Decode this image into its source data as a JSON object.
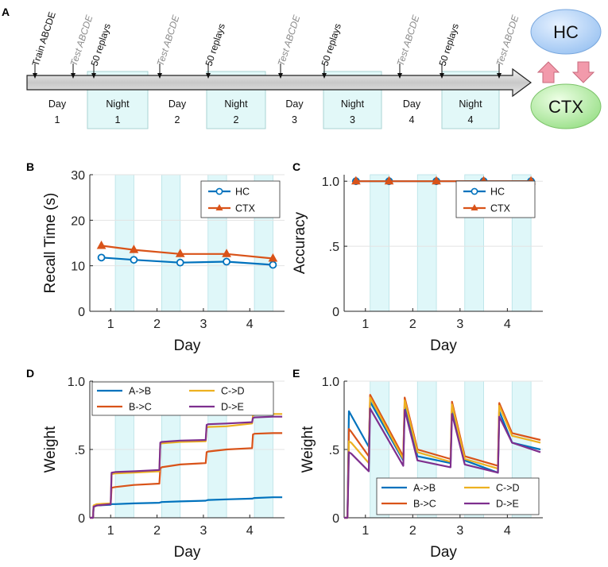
{
  "panelA": {
    "letter": "A",
    "periods": [
      {
        "name": "Day",
        "num": "1",
        "night": false
      },
      {
        "name": "Night",
        "num": "1",
        "night": true
      },
      {
        "name": "Day",
        "num": "2",
        "night": false
      },
      {
        "name": "Night",
        "num": "2",
        "night": true
      },
      {
        "name": "Day",
        "num": "3",
        "night": false
      },
      {
        "name": "Night",
        "num": "3",
        "night": true
      },
      {
        "name": "Day",
        "num": "4",
        "night": false
      },
      {
        "name": "Night",
        "num": "4",
        "night": true
      }
    ],
    "events": [
      {
        "text": "Train ABCDE",
        "style": "train"
      },
      {
        "text": "Test ABCDE",
        "style": "test"
      },
      {
        "text": "50 replays",
        "style": "replay"
      },
      {
        "text": "Test ABCDE",
        "style": "test"
      },
      {
        "text": "50 replays",
        "style": "replay"
      },
      {
        "text": "Test ABCDE",
        "style": "test"
      },
      {
        "text": "50 replays",
        "style": "replay"
      },
      {
        "text": "Test ABCDE",
        "style": "test"
      },
      {
        "text": "50 replays",
        "style": "replay"
      },
      {
        "text": "Test ABCDE",
        "style": "test"
      }
    ],
    "hc_label": "HC",
    "ctx_label": "CTX"
  },
  "chart_data": [
    {
      "panel": "B",
      "type": "line",
      "xlabel": "Day",
      "ylabel": "Recall Time (s)",
      "xlim": [
        0.55,
        4.75
      ],
      "ylim": [
        0,
        30
      ],
      "yticks": [
        0,
        10,
        20,
        30
      ],
      "ytick_labels": [
        "0",
        "10",
        "20",
        "30"
      ],
      "xticks": [
        1,
        2,
        3,
        4
      ],
      "xtick_labels": [
        "1",
        "2",
        "3",
        "4"
      ],
      "night_bands": [
        [
          1.1,
          1.5
        ],
        [
          2.1,
          2.5
        ],
        [
          3.1,
          3.5
        ],
        [
          4.1,
          4.5
        ]
      ],
      "legend_position": "top-right",
      "series": [
        {
          "name": "HC",
          "color": "#0072BD",
          "marker": "circle",
          "x": [
            0.8,
            1.5,
            2.5,
            3.5,
            4.5
          ],
          "y": [
            11.8,
            11.3,
            10.7,
            10.9,
            10.2
          ]
        },
        {
          "name": "CTX",
          "color": "#D95319",
          "marker": "triangle",
          "x": [
            0.8,
            1.5,
            2.5,
            3.5,
            4.5
          ],
          "y": [
            14.4,
            13.5,
            12.6,
            12.6,
            11.6
          ]
        }
      ]
    },
    {
      "panel": "C",
      "type": "line",
      "xlabel": "Day",
      "ylabel": "Accuracy",
      "xlim": [
        0.55,
        4.75
      ],
      "ylim": [
        0,
        1.05
      ],
      "yticks": [
        0,
        0.5,
        1
      ],
      "ytick_labels": [
        "0",
        ".5",
        "1.0"
      ],
      "xticks": [
        1,
        2,
        3,
        4
      ],
      "xtick_labels": [
        "1",
        "2",
        "3",
        "4"
      ],
      "night_bands": [
        [
          1.1,
          1.5
        ],
        [
          2.1,
          2.5
        ],
        [
          3.1,
          3.5
        ],
        [
          4.1,
          4.5
        ]
      ],
      "legend_position": "top-right",
      "series": [
        {
          "name": "HC",
          "color": "#0072BD",
          "marker": "circle",
          "x": [
            0.8,
            1.5,
            2.5,
            3.5,
            4.5
          ],
          "y": [
            1,
            1,
            1,
            1,
            1
          ]
        },
        {
          "name": "CTX",
          "color": "#D95319",
          "marker": "triangle",
          "x": [
            0.8,
            1.5,
            2.5,
            3.5,
            4.5
          ],
          "y": [
            1,
            1,
            1,
            1,
            1
          ]
        }
      ]
    },
    {
      "panel": "D",
      "type": "line",
      "xlabel": "Day",
      "ylabel": "Weight",
      "xlim": [
        0.55,
        4.75
      ],
      "ylim": [
        0,
        1
      ],
      "yticks": [
        0,
        0.5,
        1
      ],
      "ytick_labels": [
        "0",
        ".5",
        "1.0"
      ],
      "xticks": [
        1,
        2,
        3,
        4
      ],
      "xtick_labels": [
        "1",
        "2",
        "3",
        "4"
      ],
      "night_bands": [
        [
          1.1,
          1.5
        ],
        [
          2.1,
          2.5
        ],
        [
          3.1,
          3.5
        ],
        [
          4.1,
          4.5
        ]
      ],
      "legend_position": "top",
      "series": [
        {
          "name": "A->B",
          "color": "#0072BD",
          "x": [
            0.55,
            0.62,
            0.63,
            0.7,
            1.0,
            1.02,
            1.1,
            1.5,
            2.05,
            2.1,
            2.5,
            3.05,
            3.1,
            3.5,
            4.05,
            4.1,
            4.5,
            4.7
          ],
          "y": [
            0,
            0,
            0.08,
            0.09,
            0.095,
            0.1,
            0.1,
            0.105,
            0.11,
            0.115,
            0.12,
            0.125,
            0.13,
            0.135,
            0.14,
            0.145,
            0.15,
            0.15
          ]
        },
        {
          "name": "B->C",
          "color": "#D95319",
          "x": [
            0.55,
            0.62,
            0.63,
            0.7,
            1.0,
            1.02,
            1.1,
            1.5,
            2.05,
            2.07,
            2.1,
            2.5,
            3.05,
            3.07,
            3.1,
            3.5,
            4.05,
            4.07,
            4.1,
            4.5,
            4.7
          ],
          "y": [
            0,
            0,
            0.08,
            0.09,
            0.1,
            0.22,
            0.225,
            0.24,
            0.25,
            0.36,
            0.37,
            0.39,
            0.4,
            0.48,
            0.485,
            0.5,
            0.51,
            0.61,
            0.615,
            0.62,
            0.62
          ]
        },
        {
          "name": "C->D",
          "color": "#EDB120",
          "x": [
            0.55,
            0.62,
            0.63,
            0.7,
            1.0,
            1.02,
            1.1,
            1.5,
            2.05,
            2.07,
            2.1,
            2.5,
            3.05,
            3.07,
            3.1,
            3.5,
            4.05,
            4.07,
            4.1,
            4.5,
            4.7
          ],
          "y": [
            0,
            0,
            0.09,
            0.1,
            0.105,
            0.32,
            0.325,
            0.33,
            0.34,
            0.54,
            0.545,
            0.555,
            0.56,
            0.66,
            0.665,
            0.67,
            0.69,
            0.75,
            0.755,
            0.76,
            0.76
          ]
        },
        {
          "name": "D->E",
          "color": "#7E2F8E",
          "x": [
            0.55,
            0.62,
            0.63,
            0.7,
            1.0,
            1.02,
            1.1,
            1.5,
            2.05,
            2.07,
            2.1,
            2.5,
            3.05,
            3.07,
            3.1,
            3.5,
            4.05,
            4.07,
            4.1,
            4.5,
            4.7
          ],
          "y": [
            0,
            0,
            0.08,
            0.09,
            0.1,
            0.33,
            0.335,
            0.34,
            0.35,
            0.55,
            0.555,
            0.565,
            0.57,
            0.68,
            0.685,
            0.69,
            0.7,
            0.73,
            0.735,
            0.74,
            0.74
          ]
        }
      ]
    },
    {
      "panel": "E",
      "type": "line",
      "xlabel": "Day",
      "ylabel": "Weight",
      "xlim": [
        0.55,
        4.75
      ],
      "ylim": [
        0,
        1
      ],
      "yticks": [
        0,
        0.5,
        1
      ],
      "ytick_labels": [
        "0",
        ".5",
        "1.0"
      ],
      "xticks": [
        1,
        2,
        3,
        4
      ],
      "xtick_labels": [
        "1",
        "2",
        "3",
        "4"
      ],
      "night_bands": [
        [
          1.1,
          1.5
        ],
        [
          2.1,
          2.5
        ],
        [
          3.1,
          3.5
        ],
        [
          4.1,
          4.5
        ]
      ],
      "legend_position": "bottom",
      "series": [
        {
          "name": "A->B",
          "color": "#0072BD",
          "x": [
            0.55,
            0.62,
            0.65,
            0.7,
            1.07,
            1.1,
            1.8,
            1.83,
            2.1,
            2.8,
            2.83,
            3.1,
            3.8,
            3.83,
            4.1,
            4.7
          ],
          "y": [
            0,
            0,
            0.78,
            0.75,
            0.52,
            0.85,
            0.42,
            0.82,
            0.45,
            0.4,
            0.8,
            0.42,
            0.33,
            0.78,
            0.55,
            0.5
          ]
        },
        {
          "name": "B->C",
          "color": "#D95319",
          "x": [
            0.55,
            0.62,
            0.65,
            0.7,
            1.07,
            1.1,
            1.8,
            1.83,
            2.1,
            2.8,
            2.83,
            3.1,
            3.8,
            3.83,
            4.1,
            4.7
          ],
          "y": [
            0,
            0,
            0.65,
            0.63,
            0.45,
            0.9,
            0.45,
            0.88,
            0.5,
            0.43,
            0.85,
            0.45,
            0.38,
            0.84,
            0.62,
            0.57
          ]
        },
        {
          "name": "C->D",
          "color": "#EDB120",
          "x": [
            0.55,
            0.62,
            0.65,
            0.7,
            1.07,
            1.1,
            1.8,
            1.83,
            2.1,
            2.8,
            2.83,
            3.1,
            3.8,
            3.83,
            4.1,
            4.7
          ],
          "y": [
            0,
            0,
            0.56,
            0.55,
            0.4,
            0.88,
            0.43,
            0.86,
            0.48,
            0.41,
            0.83,
            0.43,
            0.36,
            0.82,
            0.6,
            0.55
          ]
        },
        {
          "name": "D->E",
          "color": "#7E2F8E",
          "x": [
            0.55,
            0.62,
            0.65,
            0.7,
            1.07,
            1.1,
            1.8,
            1.83,
            2.1,
            2.8,
            2.83,
            3.1,
            3.8,
            3.83,
            4.1,
            4.7
          ],
          "y": [
            0,
            0,
            0.48,
            0.47,
            0.34,
            0.8,
            0.38,
            0.79,
            0.42,
            0.37,
            0.76,
            0.39,
            0.33,
            0.74,
            0.55,
            0.48
          ]
        }
      ]
    }
  ]
}
